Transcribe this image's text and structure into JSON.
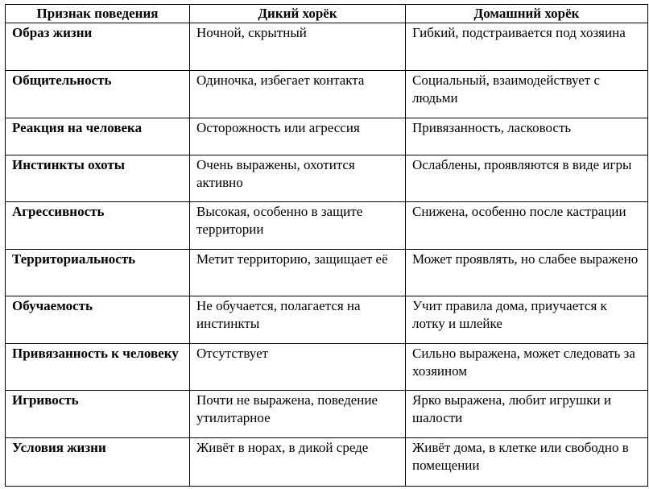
{
  "headers": [
    "Признак поведения",
    "Дикий хорёк",
    "Домашний хорёк"
  ],
  "rows": [
    {
      "trait": "Образ жизни",
      "wild": "Ночной, скрытный",
      "domestic": "Гибкий, подстраивается под хозяина"
    },
    {
      "trait": "Общительность",
      "wild": "Одиночка, избегает контакта",
      "domestic": "Социальный, взаимодействует с людьми"
    },
    {
      "trait": "Реакция на человека",
      "wild": "Осторожность или агрессия",
      "domestic": "Привязанность, ласковость"
    },
    {
      "trait": "Инстинкты охоты",
      "wild": "Очень выражены, охотится активно",
      "domestic": "Ослаблены, проявляются в виде игры"
    },
    {
      "trait": "Агрессивность",
      "wild": "Высокая, особенно в защите территории",
      "domestic": "Снижена, особенно после кастрации"
    },
    {
      "trait": "Территориальность",
      "wild": "Метит территорию, защищает её",
      "domestic": "Может проявлять, но слабее выражено"
    },
    {
      "trait": "Обучаемость",
      "wild": "Не обучается, полагается на инстинкты",
      "domestic": "Учит правила дома, приучается к лотку и шлейке"
    },
    {
      "trait": "Привязанность к человеку",
      "wild": "Отсутствует",
      "domestic": "Сильно выражена, может следовать за хозяином"
    },
    {
      "trait": "Игривость",
      "wild": "Почти не выражена, поведение утилитарное",
      "domestic": "Ярко выражена, любит игрушки и шалости"
    },
    {
      "trait": "Условия жизни",
      "wild": "Живёт в норах, в дикой среде",
      "domestic": "Живёт дома, в клетке или свободно в помещении"
    }
  ]
}
